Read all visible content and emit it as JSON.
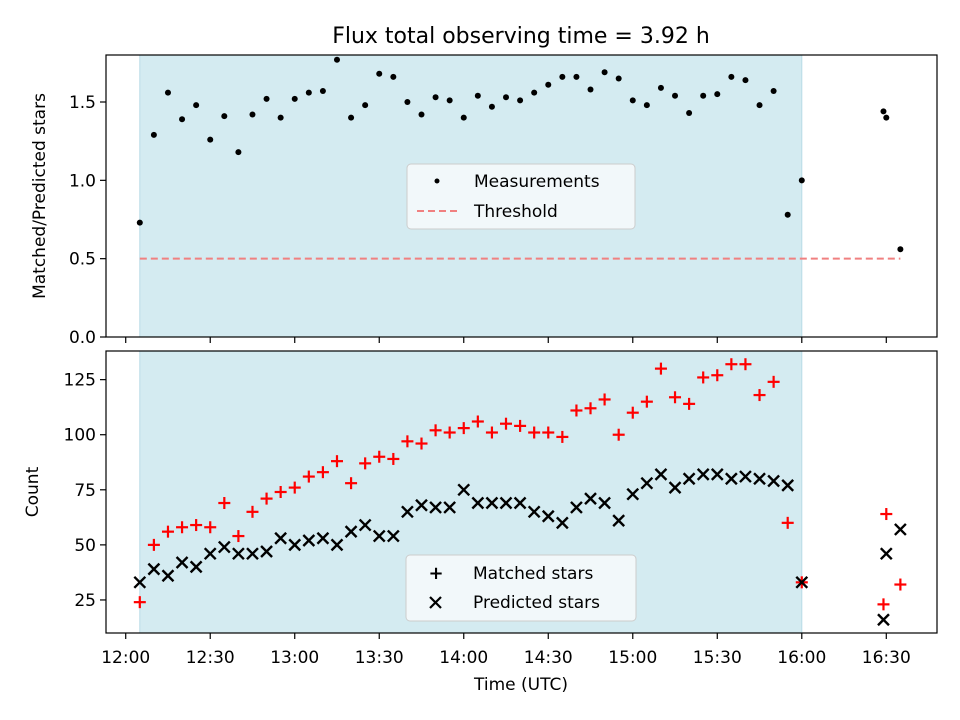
{
  "chart_data": {
    "title": "Flux total observing time = 3.92 h",
    "xlabel": "Time (UTC)",
    "x_tick_labels": [
      "12:00",
      "12:30",
      "13:00",
      "13:30",
      "14:00",
      "14:30",
      "15:00",
      "15:30",
      "16:00",
      "16:30"
    ],
    "x_tick_values": [
      "12:00",
      "12:30",
      "13:00",
      "13:30",
      "14:00",
      "14:30",
      "15:00",
      "15:30",
      "16:00",
      "16:30"
    ],
    "xlim": [
      "11:53",
      "16:48"
    ],
    "highlight_span": {
      "start": "12:05",
      "end": "16:00",
      "color": "#d4ebf1"
    },
    "colors": {
      "measurements": "#000000",
      "threshold": "#f08080",
      "matched": "#ff0000",
      "predicted": "#000000",
      "span": "#d4ebf1"
    },
    "panels": [
      {
        "type": "scatter",
        "ylabel": "Matched/Predicted stars",
        "ylim": [
          0,
          1.8
        ],
        "y_tick_values": [
          0,
          0.5,
          1.0,
          1.5
        ],
        "y_tick_labels": [
          "0.0",
          "0.5",
          "1.0",
          "1.5"
        ],
        "legend_position": "center",
        "legend": [
          "Measurements",
          "Threshold"
        ],
        "threshold": {
          "x_start": "12:05",
          "x_end": "16:35",
          "y": 0.5
        },
        "series": [
          {
            "name": "Measurements",
            "marker": "dot",
            "points": [
              [
                "12:05",
                0.73
              ],
              [
                "12:10",
                1.29
              ],
              [
                "12:15",
                1.56
              ],
              [
                "12:20",
                1.39
              ],
              [
                "12:25",
                1.48
              ],
              [
                "12:30",
                1.26
              ],
              [
                "12:35",
                1.41
              ],
              [
                "12:40",
                1.18
              ],
              [
                "12:45",
                1.42
              ],
              [
                "12:50",
                1.52
              ],
              [
                "12:55",
                1.4
              ],
              [
                "13:00",
                1.52
              ],
              [
                "13:05",
                1.56
              ],
              [
                "13:10",
                1.57
              ],
              [
                "13:15",
                1.77
              ],
              [
                "13:20",
                1.4
              ],
              [
                "13:25",
                1.48
              ],
              [
                "13:30",
                1.68
              ],
              [
                "13:35",
                1.66
              ],
              [
                "13:40",
                1.5
              ],
              [
                "13:45",
                1.42
              ],
              [
                "13:50",
                1.53
              ],
              [
                "13:55",
                1.51
              ],
              [
                "14:00",
                1.4
              ],
              [
                "14:05",
                1.54
              ],
              [
                "14:10",
                1.47
              ],
              [
                "14:15",
                1.53
              ],
              [
                "14:20",
                1.51
              ],
              [
                "14:25",
                1.56
              ],
              [
                "14:30",
                1.61
              ],
              [
                "14:35",
                1.66
              ],
              [
                "14:40",
                1.66
              ],
              [
                "14:45",
                1.58
              ],
              [
                "14:50",
                1.69
              ],
              [
                "14:55",
                1.65
              ],
              [
                "15:00",
                1.51
              ],
              [
                "15:05",
                1.48
              ],
              [
                "15:10",
                1.59
              ],
              [
                "15:15",
                1.54
              ],
              [
                "15:20",
                1.43
              ],
              [
                "15:25",
                1.54
              ],
              [
                "15:30",
                1.55
              ],
              [
                "15:35",
                1.66
              ],
              [
                "15:40",
                1.64
              ],
              [
                "15:45",
                1.48
              ],
              [
                "15:50",
                1.57
              ],
              [
                "15:55",
                0.78
              ],
              [
                "16:00",
                1.0
              ],
              [
                "16:29",
                1.44
              ],
              [
                "16:30",
                1.4
              ],
              [
                "16:35",
                0.56
              ]
            ]
          }
        ]
      },
      {
        "type": "scatter",
        "ylabel": "Count",
        "ylim": [
          10,
          138
        ],
        "y_tick_values": [
          25,
          50,
          75,
          100,
          125
        ],
        "y_tick_labels": [
          "25",
          "50",
          "75",
          "100",
          "125"
        ],
        "legend_position": "lower center",
        "legend": [
          "Matched stars",
          "Predicted stars"
        ],
        "series": [
          {
            "name": "Matched stars",
            "marker": "plus",
            "points": [
              [
                "12:05",
                24
              ],
              [
                "12:10",
                50
              ],
              [
                "12:15",
                56
              ],
              [
                "12:20",
                58
              ],
              [
                "12:25",
                59
              ],
              [
                "12:30",
                58
              ],
              [
                "12:35",
                69
              ],
              [
                "12:40",
                54
              ],
              [
                "12:45",
                65
              ],
              [
                "12:50",
                71
              ],
              [
                "12:55",
                74
              ],
              [
                "13:00",
                76
              ],
              [
                "13:05",
                81
              ],
              [
                "13:10",
                83
              ],
              [
                "13:15",
                88
              ],
              [
                "13:20",
                78
              ],
              [
                "13:25",
                87
              ],
              [
                "13:30",
                90
              ],
              [
                "13:35",
                89
              ],
              [
                "13:40",
                97
              ],
              [
                "13:45",
                96
              ],
              [
                "13:50",
                102
              ],
              [
                "13:55",
                101
              ],
              [
                "14:00",
                103
              ],
              [
                "14:05",
                106
              ],
              [
                "14:10",
                101
              ],
              [
                "14:15",
                105
              ],
              [
                "14:20",
                104
              ],
              [
                "14:25",
                101
              ],
              [
                "14:30",
                101
              ],
              [
                "14:35",
                99
              ],
              [
                "14:40",
                111
              ],
              [
                "14:45",
                112
              ],
              [
                "14:50",
                116
              ],
              [
                "14:55",
                100
              ],
              [
                "15:00",
                110
              ],
              [
                "15:05",
                115
              ],
              [
                "15:10",
                130
              ],
              [
                "15:15",
                117
              ],
              [
                "15:20",
                114
              ],
              [
                "15:25",
                126
              ],
              [
                "15:30",
                127
              ],
              [
                "15:35",
                132
              ],
              [
                "15:40",
                132
              ],
              [
                "15:45",
                118
              ],
              [
                "15:50",
                124
              ],
              [
                "15:55",
                60
              ],
              [
                "16:00",
                33
              ],
              [
                "16:29",
                23
              ],
              [
                "16:30",
                64
              ],
              [
                "16:35",
                32
              ]
            ]
          },
          {
            "name": "Predicted stars",
            "marker": "x",
            "points": [
              [
                "12:05",
                33
              ],
              [
                "12:10",
                39
              ],
              [
                "12:15",
                36
              ],
              [
                "12:20",
                42
              ],
              [
                "12:25",
                40
              ],
              [
                "12:30",
                46
              ],
              [
                "12:35",
                49
              ],
              [
                "12:40",
                46
              ],
              [
                "12:45",
                46
              ],
              [
                "12:50",
                47
              ],
              [
                "12:55",
                53
              ],
              [
                "13:00",
                50
              ],
              [
                "13:05",
                52
              ],
              [
                "13:10",
                53
              ],
              [
                "13:15",
                50
              ],
              [
                "13:20",
                56
              ],
              [
                "13:25",
                59
              ],
              [
                "13:30",
                54
              ],
              [
                "13:35",
                54
              ],
              [
                "13:40",
                65
              ],
              [
                "13:45",
                68
              ],
              [
                "13:50",
                67
              ],
              [
                "13:55",
                67
              ],
              [
                "14:00",
                75
              ],
              [
                "14:05",
                69
              ],
              [
                "14:10",
                69
              ],
              [
                "14:15",
                69
              ],
              [
                "14:20",
                69
              ],
              [
                "14:25",
                65
              ],
              [
                "14:30",
                63
              ],
              [
                "14:35",
                60
              ],
              [
                "14:40",
                67
              ],
              [
                "14:45",
                71
              ],
              [
                "14:50",
                69
              ],
              [
                "14:55",
                61
              ],
              [
                "15:00",
                73
              ],
              [
                "15:05",
                78
              ],
              [
                "15:10",
                82
              ],
              [
                "15:15",
                76
              ],
              [
                "15:20",
                80
              ],
              [
                "15:25",
                82
              ],
              [
                "15:30",
                82
              ],
              [
                "15:35",
                80
              ],
              [
                "15:40",
                81
              ],
              [
                "15:45",
                80
              ],
              [
                "15:50",
                79
              ],
              [
                "15:55",
                77
              ],
              [
                "16:00",
                33
              ],
              [
                "16:29",
                16
              ],
              [
                "16:30",
                46
              ],
              [
                "16:35",
                57
              ]
            ]
          }
        ]
      }
    ]
  }
}
